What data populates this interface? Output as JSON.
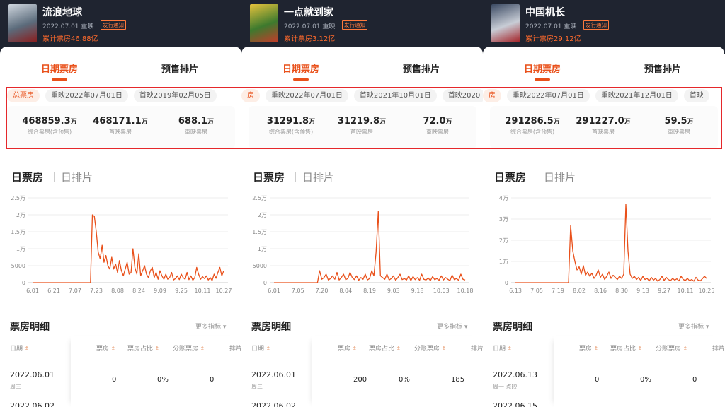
{
  "colors": {
    "accent": "#e9501a",
    "header_bg": "#1f2430",
    "highlight": "#e5282b"
  },
  "icons": {
    "sort": "sort-arrows-icon",
    "dropdown": "caret-down-icon"
  },
  "movies": [
    {
      "title": "流浪地球",
      "date": "2022.07.01 重映",
      "badge": "发行通知",
      "total": "累计票房46.88亿",
      "tabs": {
        "active": "日期票房",
        "inactive": "预售排片"
      },
      "chips": [
        "总票房",
        "重映2022年07月01日",
        "首映2019年02月05日"
      ],
      "stats": [
        {
          "value": "468859.3",
          "unit": "万",
          "label": "综合票房(含预售)"
        },
        {
          "value": "468171.1",
          "unit": "万",
          "label": "首映票房"
        },
        {
          "value": "688.1",
          "unit": "万",
          "label": "重映票房"
        }
      ],
      "section": {
        "title": "日票房",
        "sub": "日排片"
      },
      "chart_data": {
        "type": "line",
        "yticks": [
          "2.5万",
          "2万",
          "1.5万",
          "1万",
          "5000",
          "0"
        ],
        "ylim": [
          0,
          25000
        ],
        "xticks": [
          "6.01",
          "6.21",
          "7.07",
          "7.23",
          "8.08",
          "8.24",
          "9.09",
          "9.25",
          "10.11",
          "10.27"
        ],
        "values": [
          0,
          0,
          0,
          0,
          0,
          0,
          0,
          0,
          0,
          0,
          0,
          0,
          0,
          0,
          0,
          0,
          0,
          0,
          0,
          0,
          0,
          0,
          0,
          0,
          0,
          0,
          0,
          0,
          0,
          0,
          0,
          20000,
          19500,
          15000,
          9000,
          7000,
          11000,
          6000,
          8000,
          5000,
          4000,
          7500,
          4000,
          5500,
          3000,
          6500,
          3500,
          2000,
          4000,
          6000,
          2500,
          3000,
          10000,
          4500,
          2500,
          8500,
          2000,
          3500,
          5000,
          2500,
          1500,
          3500,
          4500,
          1500,
          3000,
          1000,
          3500,
          2000,
          1000,
          2500,
          1000,
          1500,
          3000,
          800,
          1200,
          2000,
          900,
          2500,
          1500,
          1000,
          3000,
          900,
          2000,
          700,
          1500,
          4500,
          2500,
          1000,
          1800,
          1200,
          2000,
          800,
          1500,
          600,
          2500,
          1300,
          3000,
          4500,
          2000,
          3500
        ],
        "start_index_label": "6.01"
      },
      "detail": {
        "title": "票房明细",
        "more": "更多指标 ▾"
      },
      "table": {
        "headers": [
          "日期",
          "票房",
          "票房占比",
          "分账票房",
          "排片"
        ],
        "rows": [
          {
            "date": "2022.06.01",
            "sub": "周三",
            "cells": [
              "0",
              "0%",
              "0"
            ]
          },
          {
            "date": "2022.06.02",
            "sub": "",
            "cells": []
          }
        ]
      }
    },
    {
      "title": "一点就到家",
      "date": "2022.07.01 重映",
      "badge": "发行通知",
      "total": "累计票房3.12亿",
      "tabs": {
        "active": "日期票房",
        "inactive": "预售排片"
      },
      "chips": [
        "房",
        "重映2022年07月01日",
        "首映2021年10月01日",
        "首映2020"
      ],
      "stats": [
        {
          "value": "31291.8",
          "unit": "万",
          "label": "综合票房(含预售)"
        },
        {
          "value": "31219.8",
          "unit": "万",
          "label": "首映票房"
        },
        {
          "value": "72.0",
          "unit": "万",
          "label": "重映票房"
        }
      ],
      "section": {
        "title": "日票房",
        "sub": "日排片"
      },
      "chart_data": {
        "type": "line",
        "yticks": [
          "2.5万",
          "2万",
          "1.5万",
          "1万",
          "5000",
          "0"
        ],
        "ylim": [
          0,
          25000
        ],
        "xticks": [
          "6.01",
          "7.05",
          "7.20",
          "8.04",
          "8.19",
          "9.03",
          "9.18",
          "10.03",
          "10.18"
        ],
        "values": [
          0,
          0,
          0,
          0,
          0,
          0,
          0,
          0,
          0,
          0,
          0,
          0,
          0,
          0,
          0,
          0,
          0,
          0,
          0,
          0,
          0,
          3500,
          1000,
          1500,
          2500,
          800,
          1200,
          2000,
          1000,
          3000,
          800,
          1500,
          2500,
          900,
          1200,
          3000,
          1500,
          900,
          2000,
          700,
          1500,
          1000,
          2500,
          800,
          1200,
          3500,
          2000,
          9000,
          21000,
          2000,
          1500,
          1000,
          2500,
          800,
          1200,
          2000,
          700,
          1500,
          2500,
          900,
          1200,
          800,
          2000,
          600,
          1800,
          900,
          1500,
          700,
          2500,
          1000,
          800,
          1400,
          600,
          1800,
          900,
          1200,
          700,
          2000,
          800,
          1500,
          1000,
          600,
          2200,
          900,
          1200,
          700,
          2500,
          1000,
          800
        ],
        "start_index_label": "6.01"
      },
      "detail": {
        "title": "票房明细",
        "more": "更多指标 ▾"
      },
      "table": {
        "headers": [
          "日期",
          "票房",
          "票房占比",
          "分账票房",
          "排片"
        ],
        "rows": [
          {
            "date": "2022.06.01",
            "sub": "周三",
            "cells": [
              "200",
              "0%",
              "185"
            ]
          },
          {
            "date": "2022.06.02",
            "sub": "",
            "cells": []
          }
        ]
      }
    },
    {
      "title": "中国机长",
      "date": "2022.07.01 重映",
      "badge": "发行通知",
      "total": "累计票房29.12亿",
      "tabs": {
        "active": "日期票房",
        "inactive": "预售排片"
      },
      "chips": [
        "房",
        "重映2022年07月01日",
        "重映2021年12月01日",
        "首映"
      ],
      "stats": [
        {
          "value": "291286.5",
          "unit": "万",
          "label": "综合票房(含预售)"
        },
        {
          "value": "291227.0",
          "unit": "万",
          "label": "首映票房"
        },
        {
          "value": "59.5",
          "unit": "万",
          "label": "重映票房"
        }
      ],
      "section": {
        "title": "日票房",
        "sub": "日排片"
      },
      "chart_data": {
        "type": "line",
        "yticks": [
          "4万",
          "3万",
          "2万",
          "1万",
          "0"
        ],
        "ylim": [
          0,
          40000
        ],
        "xticks": [
          "6.13",
          "7.05",
          "7.19",
          "8.02",
          "8.16",
          "8.30",
          "9.13",
          "9.27",
          "10.11",
          "10.25"
        ],
        "values": [
          0,
          0,
          0,
          0,
          0,
          0,
          0,
          0,
          0,
          0,
          0,
          0,
          0,
          0,
          0,
          0,
          0,
          0,
          0,
          0,
          0,
          0,
          0,
          0,
          0,
          0,
          27000,
          15000,
          10000,
          6000,
          7500,
          4000,
          8000,
          3500,
          5000,
          3000,
          4500,
          2000,
          3500,
          6000,
          2500,
          4000,
          1500,
          3000,
          5000,
          2000,
          3500,
          2500,
          1500,
          3000,
          2000,
          4000,
          37000,
          15000,
          4000,
          2000,
          3000,
          1500,
          2500,
          1000,
          3000,
          1500,
          2000,
          800,
          2500,
          1200,
          2000,
          700,
          1500,
          3000,
          1000,
          2500,
          1500,
          900,
          2000,
          1200,
          1800,
          800,
          3000,
          1500,
          1000,
          2000,
          900,
          1500,
          700,
          2500,
          1200,
          800,
          1800,
          3000,
          2000
        ],
        "start_index_label": "6.13"
      },
      "detail": {
        "title": "票房明细",
        "more": "更多指标 ▾"
      },
      "table": {
        "headers": [
          "日期",
          "票房",
          "票房占比",
          "分账票房",
          "排片"
        ],
        "rows": [
          {
            "date": "2022.06.13",
            "sub": "周一 点映",
            "cells": [
              "0",
              "0%",
              "0"
            ]
          },
          {
            "date": "2022.06.15",
            "sub": "",
            "cells": []
          }
        ]
      }
    }
  ]
}
